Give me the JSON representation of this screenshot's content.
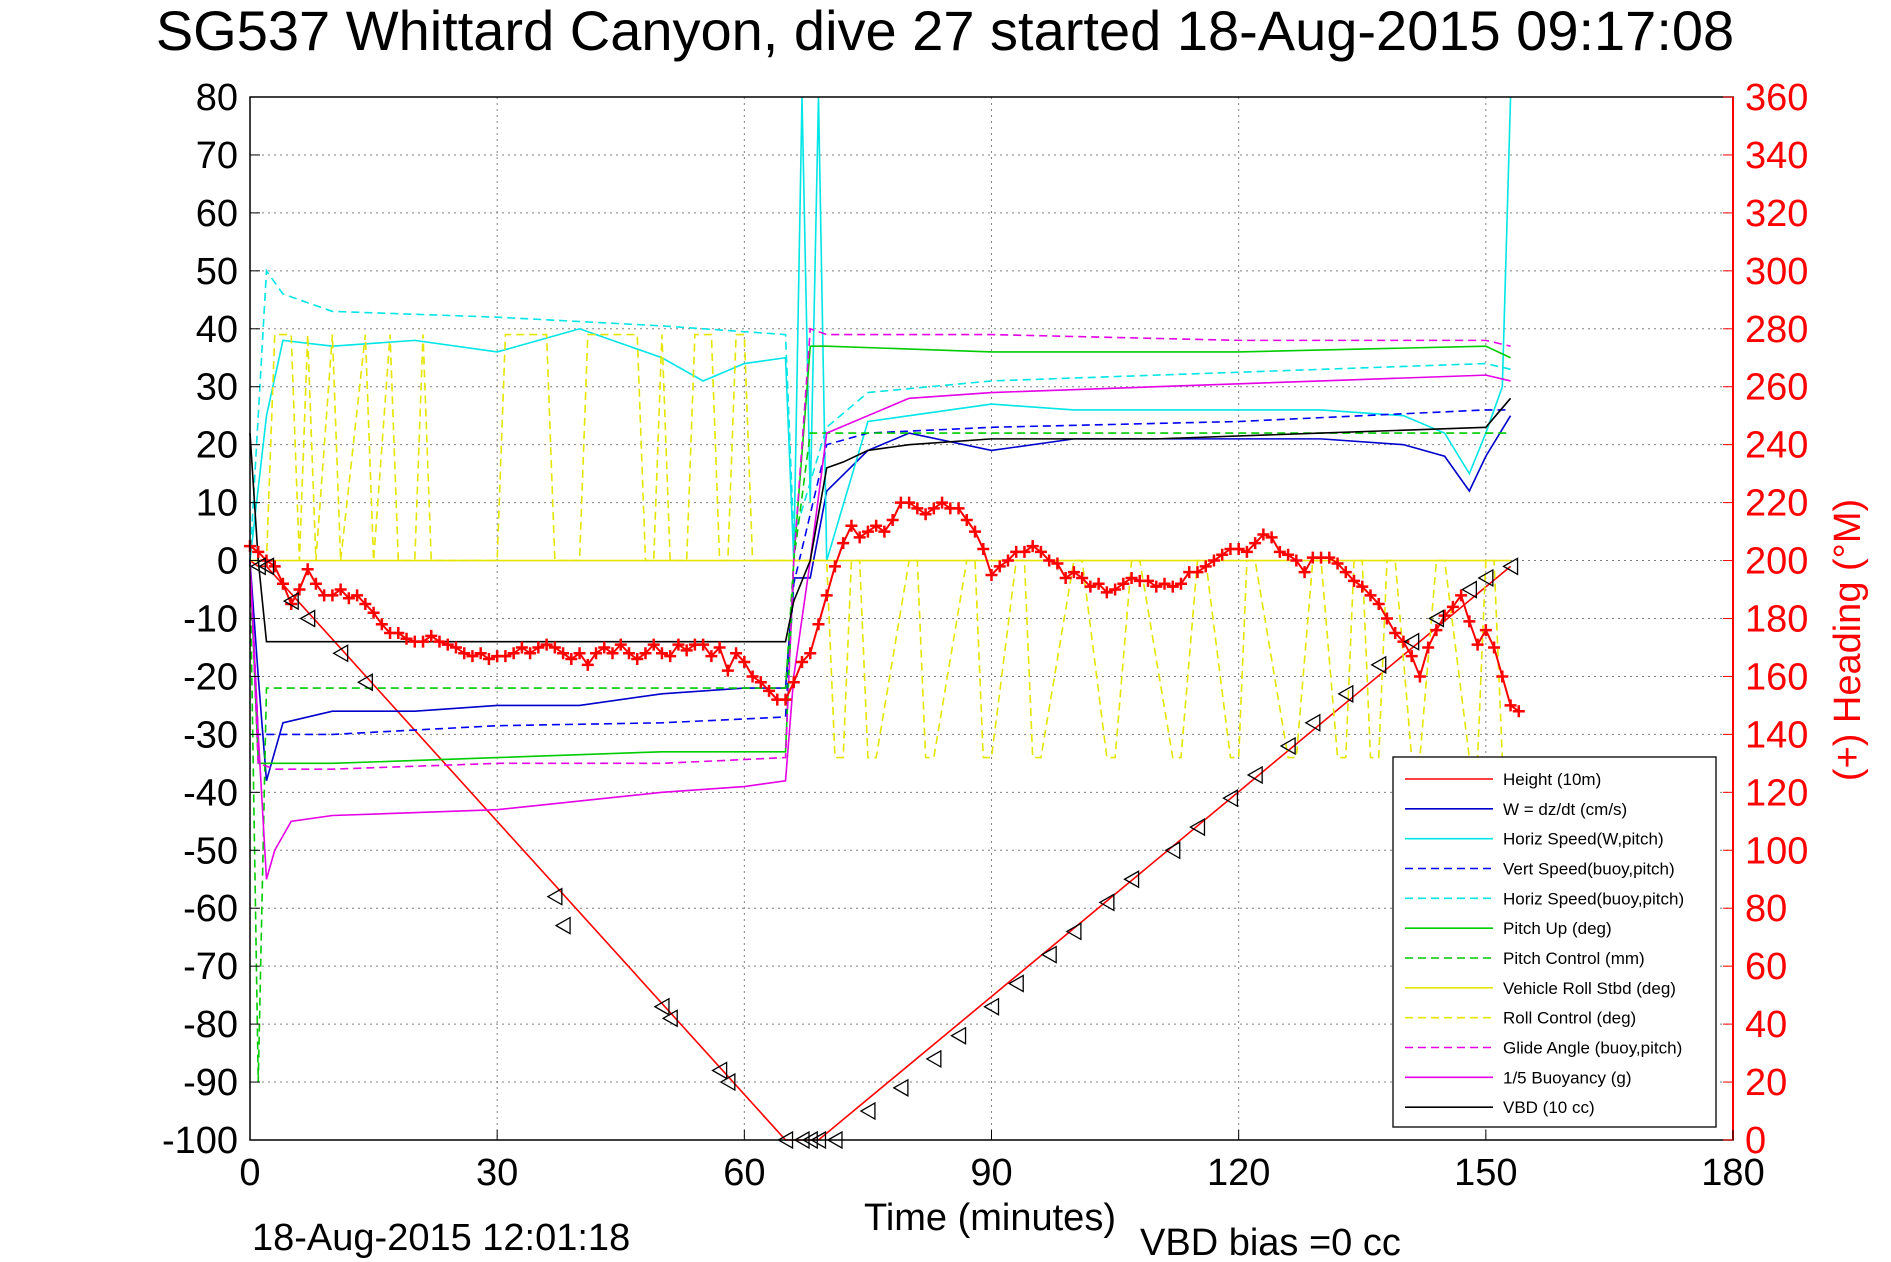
{
  "chart_data": {
    "type": "line",
    "title": "SG537 Whittard Canyon, dive 27 started 18-Aug-2015 09:17:08",
    "xlabel": "Time (minutes)",
    "ylabel_right": "(+) Heading (°M)",
    "xlim": [
      0,
      180
    ],
    "ylim": [
      -100,
      80
    ],
    "ylim_right": [
      0,
      360
    ],
    "xticks": [
      0,
      30,
      60,
      90,
      120,
      150,
      180
    ],
    "yticks": [
      80,
      70,
      60,
      50,
      40,
      30,
      20,
      10,
      0,
      -10,
      -20,
      -30,
      -40,
      -50,
      -60,
      -70,
      -80,
      -90,
      -100
    ],
    "yticks_right": [
      360,
      340,
      320,
      300,
      280,
      260,
      240,
      220,
      200,
      180,
      160,
      140,
      120,
      100,
      80,
      60,
      40,
      20,
      0
    ],
    "grid": true,
    "legend_position": "bottom-right",
    "footer_left": "18-Aug-2015 12:01:18",
    "footer_right": "VBD bias =0 cc",
    "series": [
      {
        "name": "Height (10m)",
        "color": "#ff0000",
        "dash": "solid",
        "x": [
          0,
          1,
          2,
          65,
          68,
          69,
          153
        ],
        "y": [
          0,
          -1,
          -1,
          -100,
          -100,
          -100,
          -1
        ]
      },
      {
        "name": "W = dz/dt (cm/s)",
        "color": "#0000cc",
        "dash": "solid",
        "x": [
          0,
          1,
          2,
          4,
          10,
          20,
          30,
          40,
          50,
          60,
          65,
          66,
          68,
          70,
          75,
          80,
          90,
          100,
          110,
          120,
          130,
          140,
          145,
          148,
          150,
          153
        ],
        "y": [
          0,
          -20,
          -38,
          -28,
          -26,
          -26,
          -25,
          -25,
          -23,
          -22,
          -22,
          -3,
          -3,
          12,
          19,
          22,
          19,
          21,
          21,
          21,
          21,
          20,
          18,
          12,
          18,
          25
        ]
      },
      {
        "name": "Horiz Speed(W,pitch)",
        "color": "#00e5e5",
        "dash": "solid",
        "x": [
          0,
          2,
          4,
          10,
          20,
          30,
          35,
          40,
          50,
          55,
          60,
          65,
          66,
          67,
          68,
          69,
          70,
          75,
          80,
          90,
          100,
          110,
          120,
          130,
          140,
          145,
          148,
          150,
          152,
          153
        ],
        "y": [
          0,
          25,
          38,
          37,
          38,
          36,
          38,
          40,
          35,
          31,
          34,
          35,
          0,
          80,
          10,
          80,
          0,
          24,
          25,
          27,
          26,
          26,
          26,
          26,
          25,
          22,
          15,
          22,
          30,
          80
        ]
      },
      {
        "name": "Vert Speed(buoy,pitch)",
        "color": "#0000ff",
        "dash": "dashed",
        "x": [
          0,
          1,
          3,
          10,
          30,
          50,
          65,
          66,
          70,
          75,
          90,
          120,
          150,
          153
        ],
        "y": [
          0,
          -30,
          -30,
          -30,
          -28.5,
          -28,
          -27,
          -4,
          20,
          22,
          23,
          24,
          26,
          26
        ]
      },
      {
        "name": "Horiz Speed(buoy,pitch)",
        "color": "#00e5e5",
        "dash": "dashed",
        "x": [
          0,
          2,
          4,
          10,
          30,
          50,
          65,
          66,
          70,
          75,
          90,
          110,
          130,
          150,
          153
        ],
        "y": [
          0,
          50,
          46,
          43,
          42,
          40.5,
          39,
          4,
          23,
          29,
          31,
          32,
          33,
          34,
          33
        ]
      },
      {
        "name": "Pitch Up (deg)",
        "color": "#00cc00",
        "dash": "solid",
        "x": [
          0,
          1,
          3,
          10,
          30,
          50,
          65,
          66,
          68,
          70,
          90,
          120,
          150,
          153
        ],
        "y": [
          0,
          -35,
          -35,
          -35,
          -34,
          -33,
          -33,
          0,
          37,
          37,
          36,
          36,
          37,
          35
        ]
      },
      {
        "name": "Pitch Control (mm)",
        "color": "#00cc00",
        "dash": "dashed",
        "x": [
          0,
          1,
          2,
          3,
          65,
          66,
          68,
          153
        ],
        "y": [
          0,
          -90,
          -22,
          -22,
          -22,
          0,
          22,
          22
        ]
      },
      {
        "name": "Vehicle Roll Stbd (deg)",
        "color": "#e5e500",
        "dash": "solid",
        "x": [
          0,
          1,
          2,
          65,
          66,
          68,
          153
        ],
        "y": [
          0,
          0,
          0,
          0,
          0,
          0,
          0
        ]
      },
      {
        "name": "Roll Control (deg)",
        "color": "#e5e500",
        "dash": "dashed",
        "x": [
          0,
          2,
          3,
          5,
          6,
          7,
          8,
          10,
          11,
          14,
          15,
          17,
          18,
          20,
          21,
          22,
          30,
          31,
          36,
          37,
          40,
          41,
          47,
          48,
          49,
          50,
          51,
          53,
          54,
          56,
          57,
          58,
          59,
          60,
          61,
          65,
          66,
          68,
          70,
          71,
          72,
          73,
          74,
          75,
          76,
          80,
          81,
          82,
          83,
          87,
          88,
          89,
          90,
          93,
          94,
          95,
          96,
          100,
          101,
          104,
          105,
          107,
          108,
          112,
          113,
          115,
          116,
          119,
          120,
          121,
          122,
          126,
          127,
          129,
          130,
          132,
          133,
          134,
          135,
          136,
          137,
          138,
          139,
          141,
          142,
          144,
          145,
          148,
          149,
          150,
          151,
          152,
          153
        ],
        "y": [
          0,
          0,
          39,
          39,
          0,
          39,
          0,
          39,
          0,
          39,
          0,
          39,
          0,
          0,
          39,
          0,
          0,
          39,
          39,
          0,
          0,
          39,
          39,
          0,
          0,
          39,
          0,
          0,
          39,
          39,
          0,
          0,
          39,
          39,
          0,
          0,
          0,
          0,
          0,
          -34,
          -34,
          0,
          0,
          -34,
          -34,
          0,
          0,
          -34,
          -34,
          0,
          0,
          -34,
          -34,
          0,
          0,
          -34,
          -34,
          0,
          0,
          -34,
          -34,
          0,
          0,
          -34,
          -34,
          0,
          0,
          -34,
          -34,
          0,
          0,
          -34,
          -34,
          0,
          0,
          -34,
          -34,
          0,
          0,
          -34,
          -34,
          0,
          0,
          -34,
          -34,
          0,
          0,
          -34,
          -34,
          0,
          0,
          -34,
          -34
        ]
      },
      {
        "name": "Glide Angle (buoy,pitch)",
        "color": "#e500e5",
        "dash": "dashed",
        "x": [
          0,
          1,
          3,
          10,
          30,
          50,
          65,
          66,
          68,
          70,
          90,
          120,
          150,
          153
        ],
        "y": [
          0,
          -35,
          -36,
          -36,
          -35,
          -35,
          -34,
          0,
          40,
          39,
          39,
          38,
          38,
          37
        ]
      },
      {
        "name": "1/5 Buoyancy (g)",
        "color": "#e500e5",
        "dash": "solid",
        "x": [
          0,
          1,
          2,
          3,
          5,
          10,
          30,
          50,
          60,
          65,
          66,
          68,
          70,
          75,
          80,
          90,
          110,
          130,
          150,
          153
        ],
        "y": [
          0,
          -30,
          -55,
          -50,
          -45,
          -44,
          -43,
          -40,
          -39,
          -38,
          -20,
          0,
          22,
          25,
          28,
          29,
          30,
          31,
          32,
          31
        ]
      },
      {
        "name": "VBD (10 cc)",
        "color": "#000000",
        "dash": "solid",
        "x": [
          0,
          1,
          2,
          65,
          66,
          68,
          70,
          72,
          75,
          80,
          90,
          110,
          130,
          150,
          153
        ],
        "y": [
          22,
          0,
          -14,
          -14,
          -7,
          0,
          16,
          17,
          19,
          20,
          21,
          21,
          22,
          23,
          28
        ]
      }
    ],
    "heading_series": {
      "name": "(+) Heading (°M)",
      "color": "#ff0000",
      "marker": "+",
      "x": [
        0,
        1,
        2,
        3,
        4,
        5,
        6,
        7,
        8,
        9,
        10,
        11,
        12,
        13,
        14,
        15,
        16,
        17,
        18,
        19,
        20,
        21,
        22,
        23,
        24,
        25,
        26,
        27,
        28,
        29,
        30,
        31,
        32,
        33,
        34,
        35,
        36,
        37,
        38,
        39,
        40,
        41,
        42,
        43,
        44,
        45,
        46,
        47,
        48,
        49,
        50,
        51,
        52,
        53,
        54,
        55,
        56,
        57,
        58,
        59,
        60,
        61,
        62,
        63,
        64,
        65,
        66,
        67,
        68,
        69,
        70,
        71,
        72,
        73,
        74,
        75,
        76,
        77,
        78,
        79,
        80,
        81,
        82,
        83,
        84,
        85,
        86,
        87,
        88,
        89,
        90,
        91,
        92,
        93,
        94,
        95,
        96,
        97,
        98,
        99,
        100,
        101,
        102,
        103,
        104,
        105,
        106,
        107,
        108,
        109,
        110,
        111,
        112,
        113,
        114,
        115,
        116,
        117,
        118,
        119,
        120,
        121,
        122,
        123,
        124,
        125,
        126,
        127,
        128,
        129,
        130,
        131,
        132,
        133,
        134,
        135,
        136,
        137,
        138,
        139,
        140,
        141,
        142,
        143,
        144,
        145,
        146,
        147,
        148,
        149,
        150,
        151,
        152,
        153,
        154
      ],
      "y": [
        205,
        203,
        200,
        198,
        192,
        185,
        190,
        197,
        192,
        188,
        188,
        190,
        187,
        188,
        185,
        182,
        178,
        175,
        175,
        173,
        172,
        172,
        174,
        172,
        171,
        170,
        168,
        167,
        168,
        166,
        167,
        167,
        168,
        170,
        168,
        170,
        171,
        170,
        168,
        166,
        168,
        164,
        168,
        170,
        168,
        171,
        168,
        166,
        168,
        171,
        168,
        167,
        171,
        169,
        171,
        171,
        167,
        170,
        162,
        168,
        165,
        160,
        158,
        155,
        152,
        152,
        158,
        165,
        168,
        178,
        188,
        198,
        206,
        212,
        208,
        210,
        212,
        210,
        214,
        220,
        220,
        218,
        216,
        218,
        220,
        218,
        218,
        214,
        210,
        204,
        195,
        198,
        200,
        203,
        203,
        205,
        203,
        200,
        199,
        194,
        196,
        194,
        191,
        192,
        189,
        190,
        192,
        194,
        193,
        193,
        191,
        192,
        191,
        192,
        196,
        196,
        198,
        200,
        202,
        204,
        204,
        203,
        206,
        209,
        208,
        203,
        202,
        200,
        196,
        201,
        201,
        201,
        199,
        196,
        193,
        191,
        188,
        185,
        180,
        175,
        172,
        167,
        160,
        170,
        176,
        181,
        184,
        188,
        179,
        171,
        176,
        170,
        160,
        150,
        148
      ]
    },
    "depth_markers": {
      "x": [
        1,
        2,
        5,
        7,
        11,
        14,
        37,
        38,
        50,
        51,
        57,
        58,
        65,
        67,
        68,
        69,
        71,
        75,
        79,
        83,
        86,
        90,
        93,
        97,
        100,
        104,
        107,
        112,
        115,
        119,
        122,
        126,
        129,
        133,
        137,
        141,
        144,
        148,
        150,
        153
      ],
      "y": [
        -1,
        -1,
        -7,
        -10,
        -16,
        -21,
        -58,
        -63,
        -77,
        -79,
        -88,
        -90,
        -100,
        -100,
        -100,
        -100,
        -100,
        -95,
        -91,
        -86,
        -82,
        -77,
        -73,
        -68,
        -64,
        -59,
        -55,
        -50,
        -46,
        -41,
        -37,
        -32,
        -28,
        -23,
        -18,
        -14,
        -10,
        -5,
        -3,
        -1
      ]
    },
    "legend_entries": [
      {
        "label": "Height (10m)",
        "color": "#ff0000",
        "dash": "solid"
      },
      {
        "label": "W = dz/dt (cm/s)",
        "color": "#0000cc",
        "dash": "solid"
      },
      {
        "label": "Horiz Speed(W,pitch)",
        "color": "#00e5e5",
        "dash": "solid"
      },
      {
        "label": "Vert Speed(buoy,pitch)",
        "color": "#0000ff",
        "dash": "dashed"
      },
      {
        "label": "Horiz Speed(buoy,pitch)",
        "color": "#00e5e5",
        "dash": "dashed"
      },
      {
        "label": "Pitch Up (deg)",
        "color": "#00cc00",
        "dash": "solid"
      },
      {
        "label": "Pitch Control (mm)",
        "color": "#00cc00",
        "dash": "dashed"
      },
      {
        "label": "Vehicle Roll Stbd (deg)",
        "color": "#e5e500",
        "dash": "solid"
      },
      {
        "label": "Roll Control (deg)",
        "color": "#e5e500",
        "dash": "dashed"
      },
      {
        "label": "Glide Angle (buoy,pitch)",
        "color": "#e500e5",
        "dash": "dashed"
      },
      {
        "label": "1/5 Buoyancy (g)",
        "color": "#e500e5",
        "dash": "solid"
      },
      {
        "label": "VBD (10 cc)",
        "color": "#000000",
        "dash": "solid"
      }
    ]
  }
}
